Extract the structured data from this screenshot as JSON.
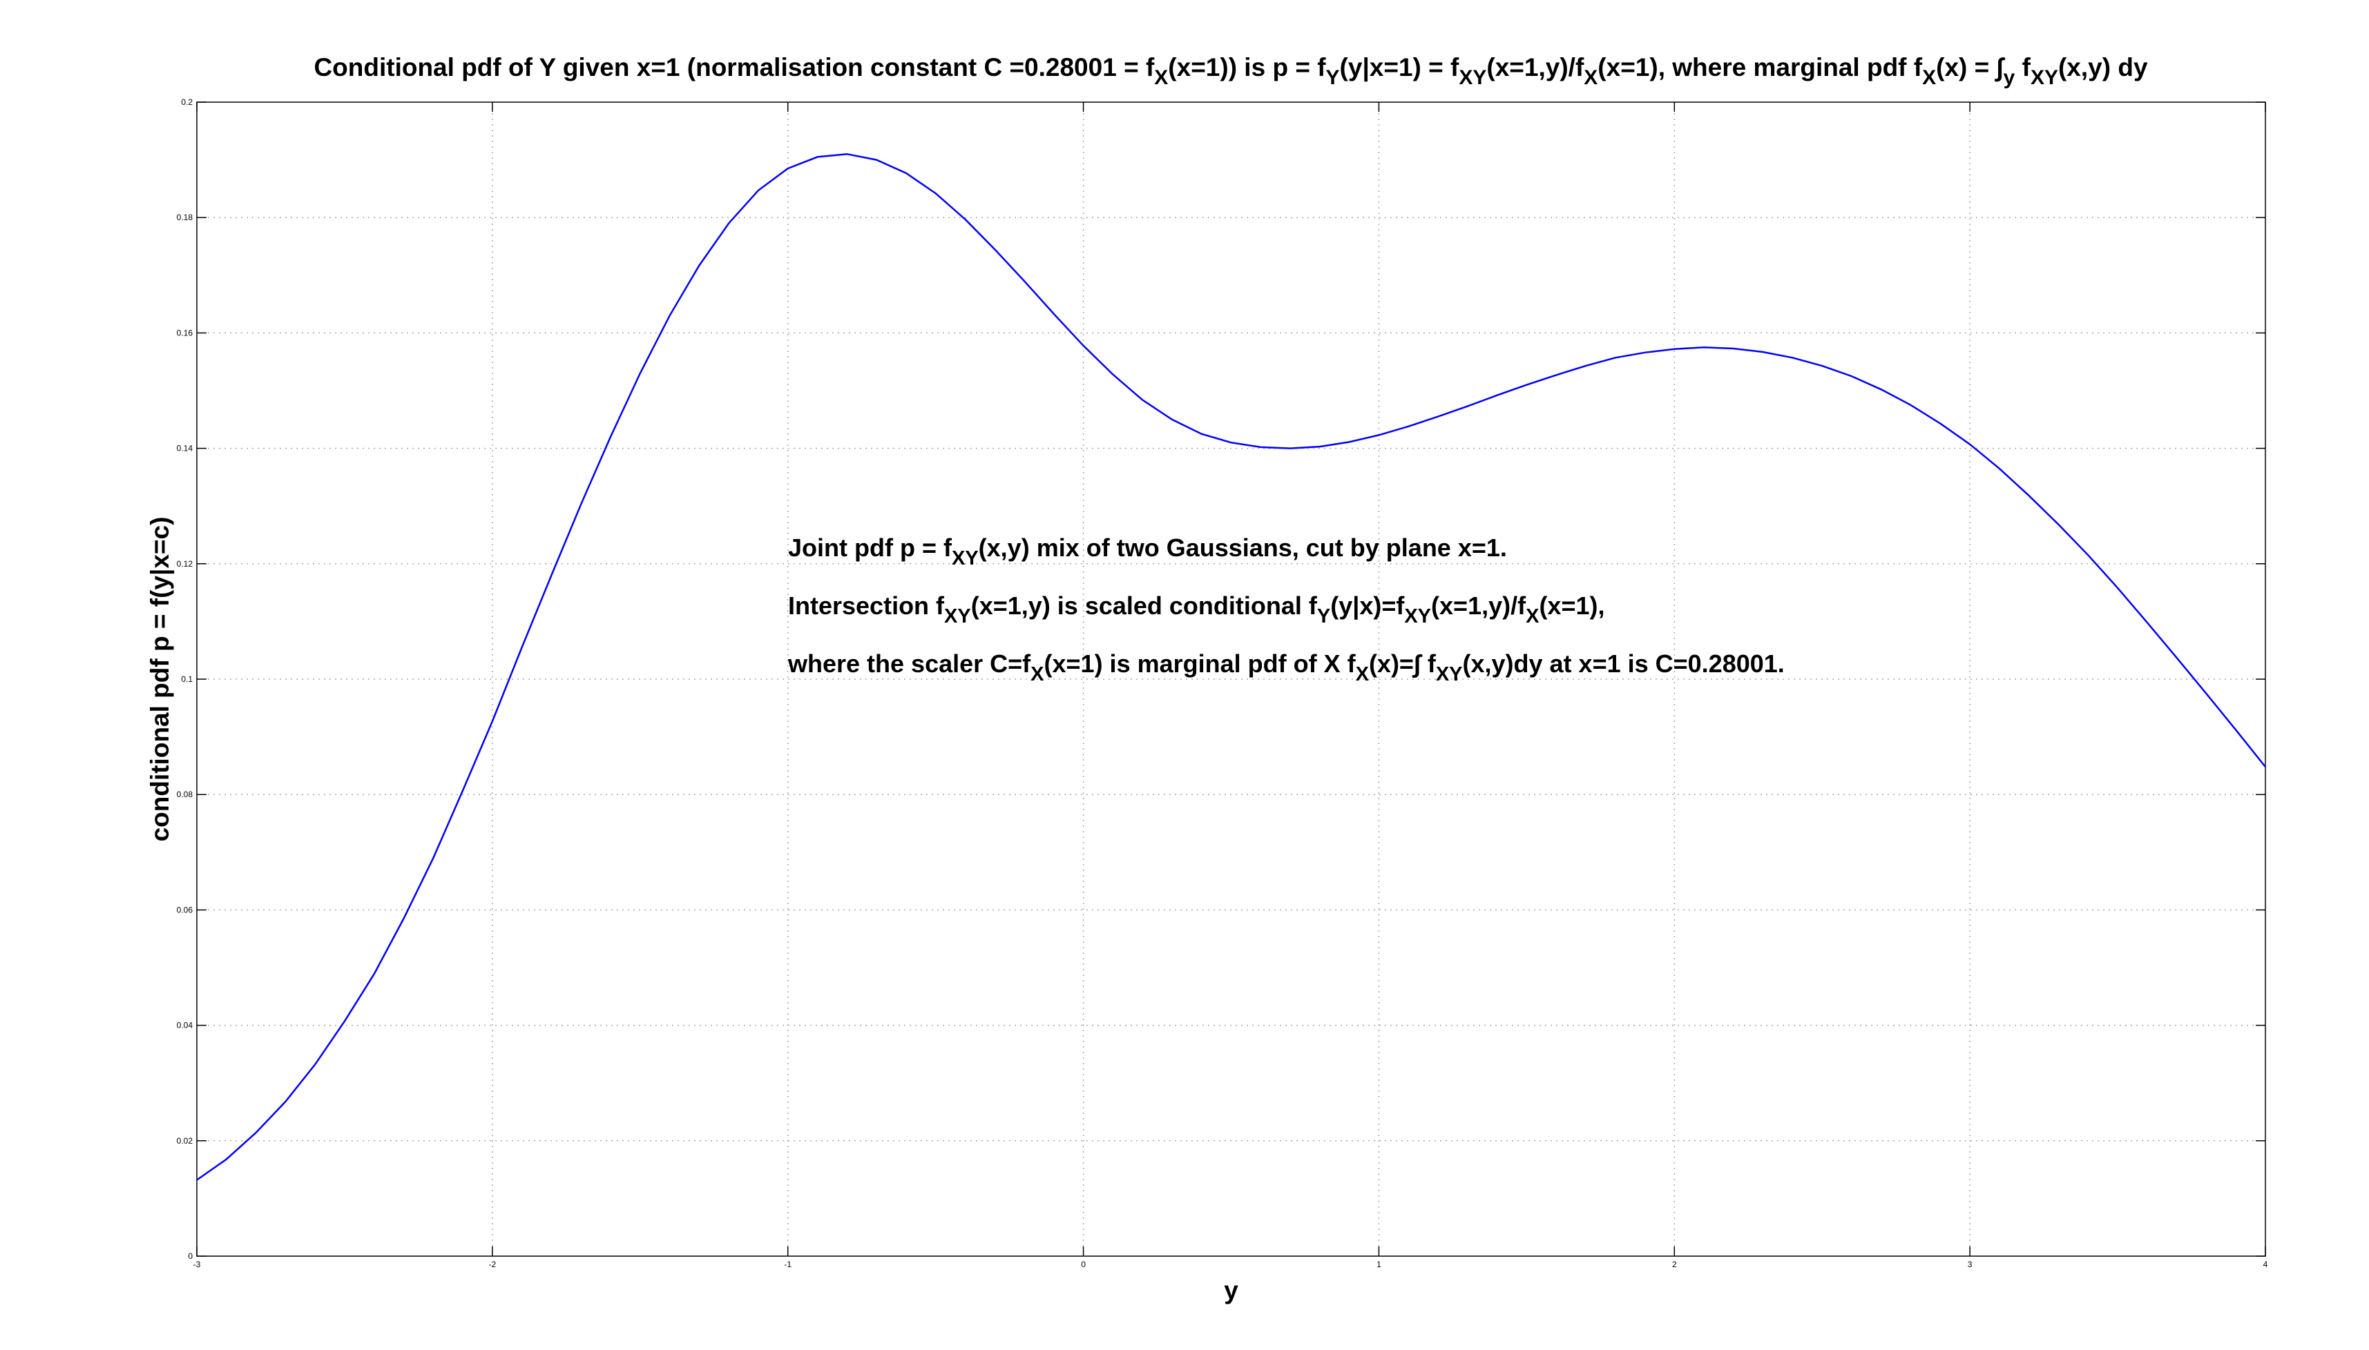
{
  "chart_data": {
    "type": "line",
    "title": {
      "segments": [
        {
          "t": "Conditional pdf of Y given x=1 (normalisation constant C =0.28001 = f"
        },
        {
          "t": "X",
          "sub": true
        },
        {
          "t": "(x=1)) is p = f"
        },
        {
          "t": "Y",
          "sub": true
        },
        {
          "t": "(y|x=1) = f"
        },
        {
          "t": "XY",
          "sub": true
        },
        {
          "t": "(x=1,y)/f"
        },
        {
          "t": "X",
          "sub": true
        },
        {
          "t": "(x=1), where marginal pdf f"
        },
        {
          "t": "X",
          "sub": true
        },
        {
          "t": "(x) = ∫"
        },
        {
          "t": "y",
          "sub": true
        },
        {
          "t": " f"
        },
        {
          "t": "XY",
          "sub": true
        },
        {
          "t": "(x,y) dy"
        }
      ]
    },
    "xlabel": "y",
    "ylabel": "conditional pdf p = f(y|x=c)",
    "xlim": [
      -3,
      4
    ],
    "ylim": [
      0,
      0.2
    ],
    "grid": true,
    "xticks": [
      -3,
      -2,
      -1,
      0,
      1,
      2,
      3,
      4
    ],
    "xtick_labels": [
      "-3",
      "-2",
      "-1",
      "0",
      "1",
      "2",
      "3",
      "4"
    ],
    "yticks": [
      0,
      0.02,
      0.04,
      0.06,
      0.08,
      0.1,
      0.12,
      0.14,
      0.16,
      0.18,
      0.2
    ],
    "ytick_labels": [
      "0",
      "0.02",
      "0.04",
      "0.06",
      "0.08",
      "0.1",
      "0.12",
      "0.14",
      "0.16",
      "0.18",
      "0.2"
    ],
    "series": [
      {
        "color": "#0000ff",
        "x": [
          -3.0,
          -2.9,
          -2.8,
          -2.7,
          -2.6,
          -2.5,
          -2.4,
          -2.3,
          -2.2,
          -2.1,
          -2.0,
          -1.9,
          -1.8,
          -1.7,
          -1.6,
          -1.5,
          -1.4,
          -1.3,
          -1.2,
          -1.1,
          -1.0,
          -0.9,
          -0.8,
          -0.7,
          -0.6,
          -0.5,
          -0.4,
          -0.3,
          -0.2,
          -0.1,
          0.0,
          0.1,
          0.2,
          0.3,
          0.4,
          0.5,
          0.6,
          0.7,
          0.8,
          0.9,
          1.0,
          1.1,
          1.2,
          1.3,
          1.4,
          1.5,
          1.6,
          1.7,
          1.8,
          1.9,
          2.0,
          2.1,
          2.2,
          2.3,
          2.4,
          2.5,
          2.6,
          2.7,
          2.8,
          2.9,
          3.0,
          3.1,
          3.2,
          3.3,
          3.4,
          3.5,
          3.6,
          3.7,
          3.8,
          3.9,
          4.0
        ],
        "y": [
          0.0132,
          0.0168,
          0.0214,
          0.0268,
          0.0332,
          0.0407,
          0.0489,
          0.0585,
          0.069,
          0.0807,
          0.0927,
          0.1055,
          0.118,
          0.1303,
          0.142,
          0.153,
          0.163,
          0.1717,
          0.179,
          0.1847,
          0.1885,
          0.1905,
          0.191,
          0.19,
          0.1877,
          0.1842,
          0.1797,
          0.1745,
          0.169,
          0.1633,
          0.1578,
          0.1528,
          0.1484,
          0.145,
          0.1425,
          0.141,
          0.1402,
          0.14,
          0.1403,
          0.1411,
          0.1423,
          0.1438,
          0.1455,
          0.1473,
          0.1492,
          0.151,
          0.1527,
          0.1543,
          0.1557,
          0.1566,
          0.1572,
          0.1575,
          0.1573,
          0.1567,
          0.1557,
          0.1543,
          0.1525,
          0.1502,
          0.1475,
          0.1443,
          0.1407,
          0.1365,
          0.1318,
          0.1268,
          0.1215,
          0.1158,
          0.1098,
          0.1037,
          0.0975,
          0.0912,
          0.0848
        ]
      }
    ],
    "annotation_lines": [
      [
        {
          "t": "Joint pdf p = f"
        },
        {
          "t": "XY",
          "sub": true
        },
        {
          "t": "(x,y) mix of two Gaussians, cut by plane x=1."
        }
      ],
      [
        {
          "t": "Intersection f"
        },
        {
          "t": "XY",
          "sub": true
        },
        {
          "t": "(x=1,y) is scaled conditional f"
        },
        {
          "t": "Y",
          "sub": true
        },
        {
          "t": "(y|x)=f"
        },
        {
          "t": "XY",
          "sub": true
        },
        {
          "t": "(x=1,y)/f"
        },
        {
          "t": "X",
          "sub": true
        },
        {
          "t": "(x=1),"
        }
      ],
      [
        {
          "t": "where the scaler C=f"
        },
        {
          "t": "X",
          "sub": true
        },
        {
          "t": "(x=1) is marginal pdf of X f"
        },
        {
          "t": "X",
          "sub": true
        },
        {
          "t": "(x)=∫ f"
        },
        {
          "t": "XY",
          "sub": true
        },
        {
          "t": "(x,y)dy at x=1 is C=0.28001."
        }
      ]
    ]
  }
}
